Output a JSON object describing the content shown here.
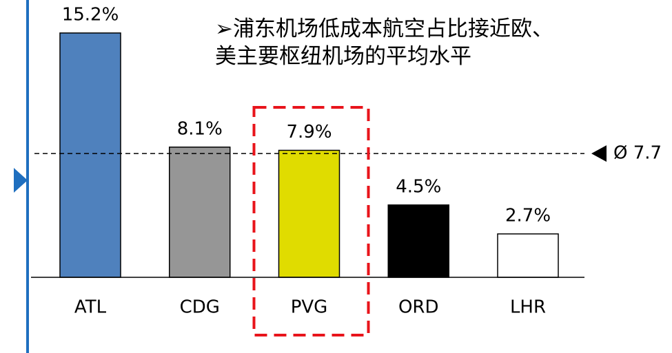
{
  "chart_data": {
    "type": "bar",
    "annotation": [
      "➢浦东机场低成本航空占比接近欧、",
      "美主要枢纽机场的平均水平"
    ],
    "categories": [
      "ATL",
      "CDG",
      "PVG",
      "ORD",
      "LHR"
    ],
    "values": [
      15.2,
      8.1,
      7.9,
      4.5,
      2.7
    ],
    "value_labels": [
      "15.2%",
      "8.1%",
      "7.9%",
      "4.5%",
      "2.7%"
    ],
    "colors": [
      "#4f81bd",
      "#969696",
      "#e0dc00",
      "#000000",
      "#ffffff"
    ],
    "average": {
      "value": 7.7,
      "label": "Ø 7.7"
    },
    "highlight": "PVG"
  }
}
